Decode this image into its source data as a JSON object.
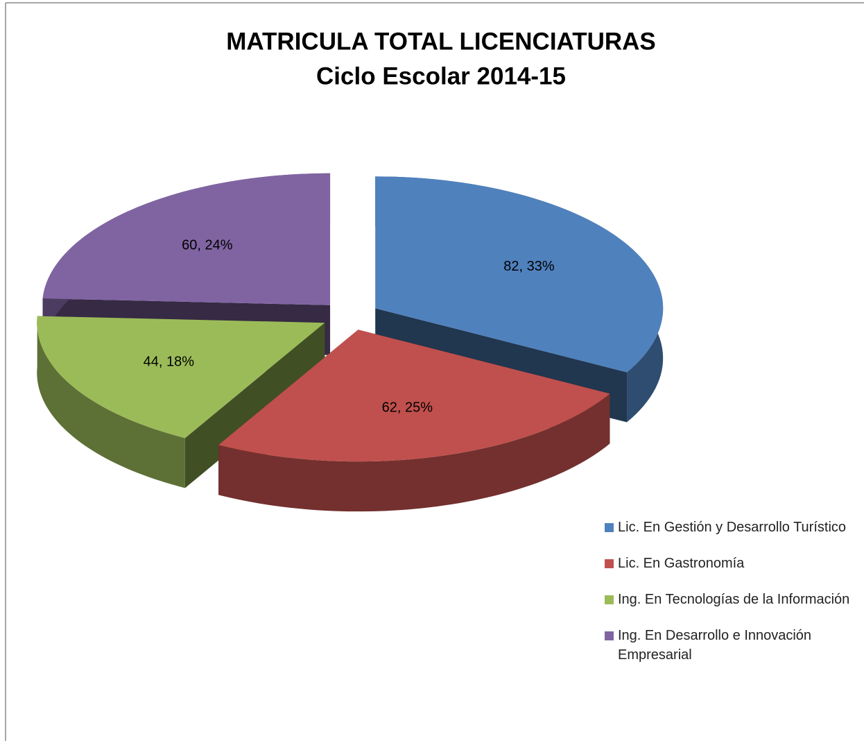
{
  "chart_data": {
    "type": "pie3d",
    "title": "MATRICULA TOTAL LICENCIATURAS",
    "subtitle": "Ciclo Escolar 2014-15",
    "categories": [
      "Lic. En Gestión y Desarrollo Turístico",
      "Lic. En Gastronomía",
      "Ing. En Tecnologías de la Información",
      "Ing. En Desarrollo e Innovación Empresarial"
    ],
    "values": [
      82,
      62,
      44,
      60
    ],
    "value_labels": [
      "82, 33%",
      "62, 25%",
      "44, 18%",
      "60, 24%"
    ],
    "colors": [
      "#4f81bd",
      "#c0504d",
      "#9bbb59",
      "#8064a2"
    ],
    "legend": "right-bottom"
  }
}
